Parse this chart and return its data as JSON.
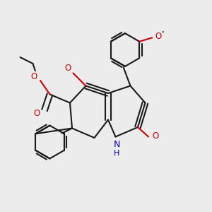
{
  "bg_color": "#ececec",
  "bond_color": "#1a1a1a",
  "o_color": "#cc0000",
  "n_color": "#0000aa",
  "lw": 1.5,
  "figsize": [
    3.0,
    3.0
  ],
  "dpi": 100,
  "xlim": [
    0,
    10
  ],
  "ylim": [
    0,
    10
  ]
}
